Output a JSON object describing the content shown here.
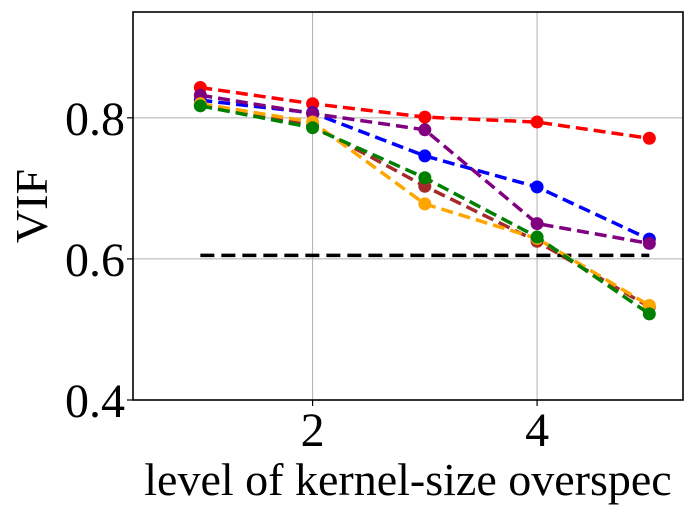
{
  "chart_data": {
    "type": "line",
    "title": "",
    "xlabel": "level of kernel-size overspec",
    "ylabel": "VIF",
    "xlim": [
      0.4,
      5.3
    ],
    "ylim": [
      0.4,
      0.95
    ],
    "xticks": [
      2,
      4
    ],
    "xtick_labels": [
      "2",
      "4"
    ],
    "yticks": [
      0.4,
      0.6,
      0.8
    ],
    "ytick_labels": [
      "0.4",
      "0.6",
      "0.8"
    ],
    "grid": true,
    "x": [
      1,
      2,
      3,
      4,
      5
    ],
    "series": [
      {
        "name": "red",
        "color": "#ff0000",
        "values": [
          0.843,
          0.82,
          0.801,
          0.794,
          0.771
        ]
      },
      {
        "name": "blue",
        "color": "#0000ff",
        "values": [
          0.825,
          0.807,
          0.746,
          0.702,
          0.628
        ]
      },
      {
        "name": "purple",
        "color": "#800080",
        "values": [
          0.832,
          0.806,
          0.783,
          0.65,
          0.622
        ]
      },
      {
        "name": "brown",
        "color": "#a52a2a",
        "values": [
          0.818,
          0.789,
          0.703,
          0.625,
          0.532
        ]
      },
      {
        "name": "orange",
        "color": "#ffa500",
        "values": [
          0.82,
          0.794,
          0.678,
          0.629,
          0.534
        ]
      },
      {
        "name": "green",
        "color": "#008000",
        "values": [
          0.817,
          0.786,
          0.715,
          0.631,
          0.522
        ]
      }
    ],
    "reference_line": {
      "name": "baseline",
      "color": "#000000",
      "y": 0.605,
      "x_range": [
        1,
        5
      ]
    }
  }
}
